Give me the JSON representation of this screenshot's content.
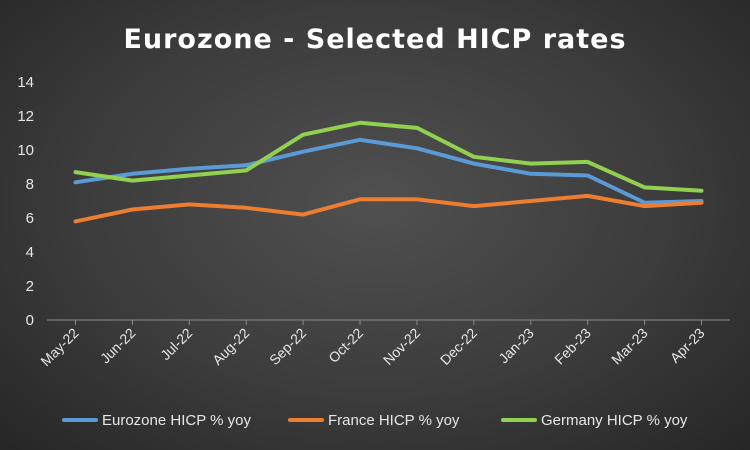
{
  "chart_data": {
    "type": "line",
    "title": "Eurozone - Selected HICP rates",
    "xlabel": "",
    "ylabel": "",
    "ylim": [
      0,
      14
    ],
    "yticks": [
      0,
      2,
      4,
      6,
      8,
      10,
      12,
      14
    ],
    "grid": false,
    "legend_position": "bottom",
    "categories": [
      "May-22",
      "Jun-22",
      "Jul-22",
      "Aug-22",
      "Sep-22",
      "Oct-22",
      "Nov-22",
      "Dec-22",
      "Jan-23",
      "Feb-23",
      "Mar-23",
      "Apr-23"
    ],
    "series": [
      {
        "name": "Eurozone HICP % yoy",
        "color": "#5b9bd5",
        "values": [
          8.1,
          8.6,
          8.9,
          9.1,
          9.9,
          10.6,
          10.1,
          9.2,
          8.6,
          8.5,
          6.9,
          7.0
        ]
      },
      {
        "name": "France HICP % yoy",
        "color": "#ed7d31",
        "values": [
          5.8,
          6.5,
          6.8,
          6.6,
          6.2,
          7.1,
          7.1,
          6.7,
          7.0,
          7.3,
          6.7,
          6.9
        ]
      },
      {
        "name": "Germany HICP % yoy",
        "color": "#92d050",
        "values": [
          8.7,
          8.2,
          8.5,
          8.8,
          10.9,
          11.6,
          11.3,
          9.6,
          9.2,
          9.3,
          7.8,
          7.6
        ]
      }
    ]
  }
}
